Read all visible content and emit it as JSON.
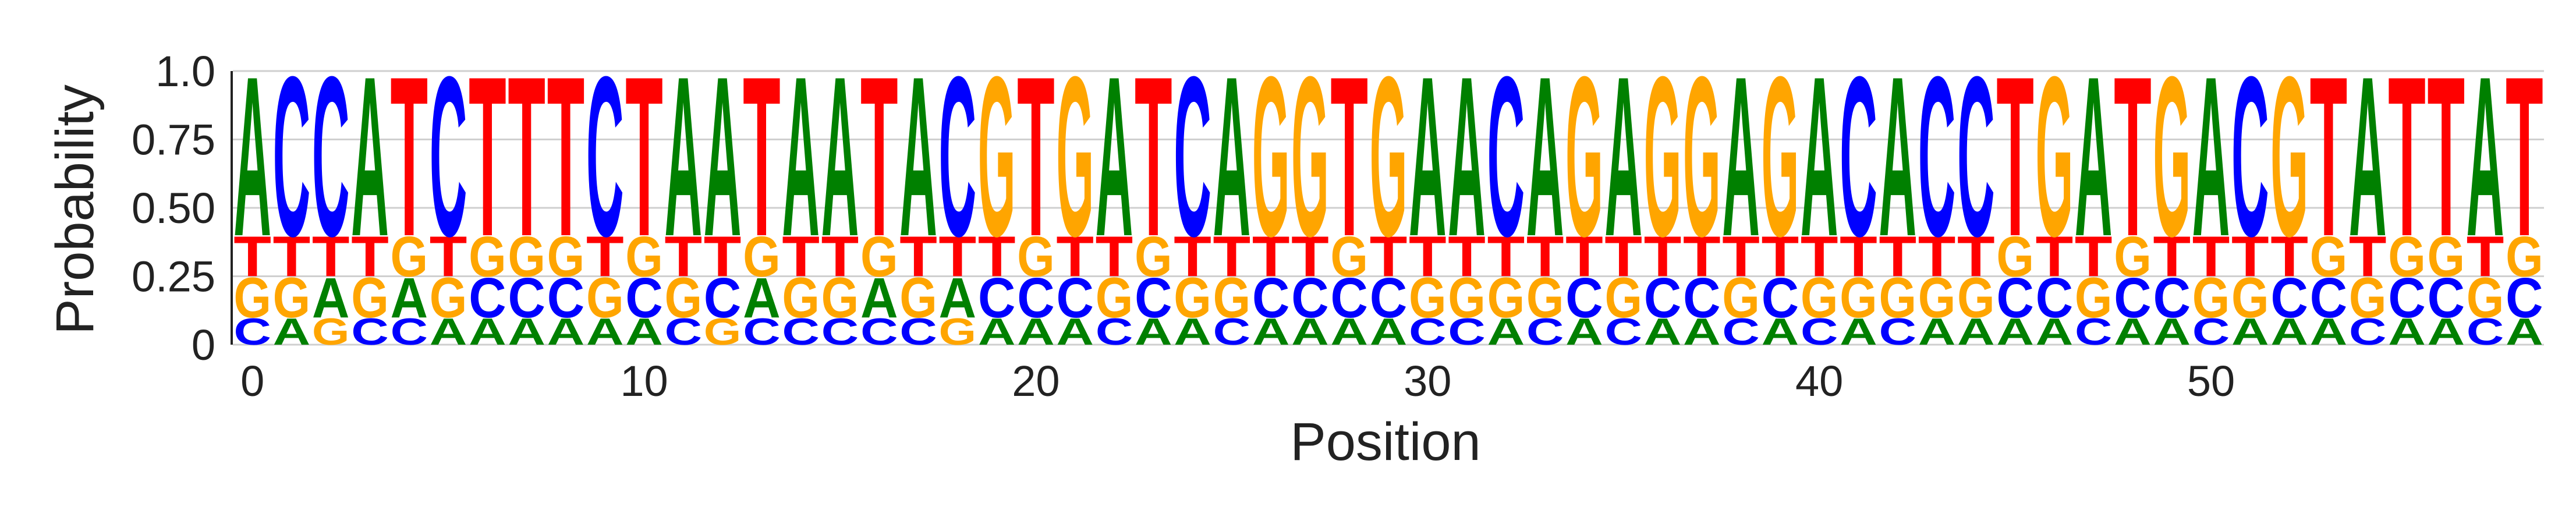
{
  "chart_data": {
    "type": "sequence-logo",
    "title": "",
    "xlabel": "Position",
    "ylabel": "Probability",
    "ylim": [
      0,
      1
    ],
    "yticks": [
      {
        "value": 0,
        "label": "0"
      },
      {
        "value": 0.25,
        "label": "0.25"
      },
      {
        "value": 0.5,
        "label": "0.50"
      },
      {
        "value": 0.75,
        "label": "0.75"
      },
      {
        "value": 1.0,
        "label": "1.0"
      }
    ],
    "xticks": [
      {
        "value": 0,
        "label": "0"
      },
      {
        "value": 10,
        "label": "10"
      },
      {
        "value": 20,
        "label": "20"
      },
      {
        "value": 30,
        "label": "30"
      },
      {
        "value": 40,
        "label": "40"
      },
      {
        "value": 50,
        "label": "50"
      }
    ],
    "grid": true,
    "letters": [
      "A",
      "C",
      "G",
      "T"
    ],
    "letter_colors": {
      "A": "#008000",
      "C": "#0000ff",
      "G": "#ffa500",
      "T": "#ff0000"
    },
    "positions": [
      {
        "pos": 0,
        "A": 0.6,
        "C": 0.1,
        "G": 0.15,
        "T": 0.15
      },
      {
        "pos": 1,
        "A": 0.1,
        "C": 0.6,
        "G": 0.15,
        "T": 0.15
      },
      {
        "pos": 2,
        "A": 0.15,
        "C": 0.6,
        "G": 0.1,
        "T": 0.15
      },
      {
        "pos": 3,
        "A": 0.6,
        "C": 0.1,
        "G": 0.15,
        "T": 0.15
      },
      {
        "pos": 4,
        "A": 0.15,
        "C": 0.1,
        "G": 0.15,
        "T": 0.6
      },
      {
        "pos": 5,
        "A": 0.1,
        "C": 0.6,
        "G": 0.15,
        "T": 0.15
      },
      {
        "pos": 6,
        "A": 0.1,
        "C": 0.15,
        "G": 0.15,
        "T": 0.6
      },
      {
        "pos": 7,
        "A": 0.1,
        "C": 0.15,
        "G": 0.15,
        "T": 0.6
      },
      {
        "pos": 8,
        "A": 0.1,
        "C": 0.15,
        "G": 0.15,
        "T": 0.6
      },
      {
        "pos": 9,
        "A": 0.1,
        "C": 0.6,
        "G": 0.15,
        "T": 0.15
      },
      {
        "pos": 10,
        "A": 0.1,
        "C": 0.15,
        "G": 0.15,
        "T": 0.6
      },
      {
        "pos": 11,
        "A": 0.6,
        "C": 0.1,
        "G": 0.15,
        "T": 0.15
      },
      {
        "pos": 12,
        "A": 0.6,
        "C": 0.15,
        "G": 0.1,
        "T": 0.15
      },
      {
        "pos": 13,
        "A": 0.15,
        "C": 0.1,
        "G": 0.15,
        "T": 0.6
      },
      {
        "pos": 14,
        "A": 0.6,
        "C": 0.1,
        "G": 0.15,
        "T": 0.15
      },
      {
        "pos": 15,
        "A": 0.6,
        "C": 0.1,
        "G": 0.15,
        "T": 0.15
      },
      {
        "pos": 16,
        "A": 0.15,
        "C": 0.1,
        "G": 0.15,
        "T": 0.6
      },
      {
        "pos": 17,
        "A": 0.6,
        "C": 0.1,
        "G": 0.15,
        "T": 0.15
      },
      {
        "pos": 18,
        "A": 0.15,
        "C": 0.6,
        "G": 0.1,
        "T": 0.15
      },
      {
        "pos": 19,
        "A": 0.1,
        "C": 0.15,
        "G": 0.6,
        "T": 0.15
      },
      {
        "pos": 20,
        "A": 0.1,
        "C": 0.15,
        "G": 0.15,
        "T": 0.6
      },
      {
        "pos": 21,
        "A": 0.1,
        "C": 0.15,
        "G": 0.6,
        "T": 0.15
      },
      {
        "pos": 22,
        "A": 0.6,
        "C": 0.1,
        "G": 0.15,
        "T": 0.15
      },
      {
        "pos": 23,
        "A": 0.1,
        "C": 0.15,
        "G": 0.15,
        "T": 0.6
      },
      {
        "pos": 24,
        "A": 0.1,
        "C": 0.6,
        "G": 0.15,
        "T": 0.15
      },
      {
        "pos": 25,
        "A": 0.6,
        "C": 0.1,
        "G": 0.15,
        "T": 0.15
      },
      {
        "pos": 26,
        "A": 0.1,
        "C": 0.15,
        "G": 0.6,
        "T": 0.15
      },
      {
        "pos": 27,
        "A": 0.1,
        "C": 0.15,
        "G": 0.6,
        "T": 0.15
      },
      {
        "pos": 28,
        "A": 0.1,
        "C": 0.15,
        "G": 0.15,
        "T": 0.6
      },
      {
        "pos": 29,
        "A": 0.1,
        "C": 0.15,
        "G": 0.6,
        "T": 0.15
      },
      {
        "pos": 30,
        "A": 0.6,
        "C": 0.1,
        "G": 0.15,
        "T": 0.15
      },
      {
        "pos": 31,
        "A": 0.6,
        "C": 0.1,
        "G": 0.15,
        "T": 0.15
      },
      {
        "pos": 32,
        "A": 0.1,
        "C": 0.6,
        "G": 0.15,
        "T": 0.15
      },
      {
        "pos": 33,
        "A": 0.6,
        "C": 0.1,
        "G": 0.15,
        "T": 0.15
      },
      {
        "pos": 34,
        "A": 0.1,
        "C": 0.15,
        "G": 0.6,
        "T": 0.15
      },
      {
        "pos": 35,
        "A": 0.6,
        "C": 0.1,
        "G": 0.15,
        "T": 0.15
      },
      {
        "pos": 36,
        "A": 0.1,
        "C": 0.15,
        "G": 0.6,
        "T": 0.15
      },
      {
        "pos": 37,
        "A": 0.1,
        "C": 0.15,
        "G": 0.6,
        "T": 0.15
      },
      {
        "pos": 38,
        "A": 0.6,
        "C": 0.1,
        "G": 0.15,
        "T": 0.15
      },
      {
        "pos": 39,
        "A": 0.1,
        "C": 0.15,
        "G": 0.6,
        "T": 0.15
      },
      {
        "pos": 40,
        "A": 0.6,
        "C": 0.1,
        "G": 0.15,
        "T": 0.15
      },
      {
        "pos": 41,
        "A": 0.1,
        "C": 0.6,
        "G": 0.15,
        "T": 0.15
      },
      {
        "pos": 42,
        "A": 0.6,
        "C": 0.1,
        "G": 0.15,
        "T": 0.15
      },
      {
        "pos": 43,
        "A": 0.1,
        "C": 0.6,
        "G": 0.15,
        "T": 0.15
      },
      {
        "pos": 44,
        "A": 0.1,
        "C": 0.6,
        "G": 0.15,
        "T": 0.15
      },
      {
        "pos": 45,
        "A": 0.1,
        "C": 0.15,
        "G": 0.15,
        "T": 0.6
      },
      {
        "pos": 46,
        "A": 0.1,
        "C": 0.15,
        "G": 0.6,
        "T": 0.15
      },
      {
        "pos": 47,
        "A": 0.6,
        "C": 0.1,
        "G": 0.15,
        "T": 0.15
      },
      {
        "pos": 48,
        "A": 0.1,
        "C": 0.15,
        "G": 0.15,
        "T": 0.6
      },
      {
        "pos": 49,
        "A": 0.1,
        "C": 0.15,
        "G": 0.6,
        "T": 0.15
      },
      {
        "pos": 50,
        "A": 0.6,
        "C": 0.1,
        "G": 0.15,
        "T": 0.15
      },
      {
        "pos": 51,
        "A": 0.1,
        "C": 0.6,
        "G": 0.15,
        "T": 0.15
      },
      {
        "pos": 52,
        "A": 0.1,
        "C": 0.15,
        "G": 0.6,
        "T": 0.15
      },
      {
        "pos": 53,
        "A": 0.1,
        "C": 0.15,
        "G": 0.15,
        "T": 0.6
      },
      {
        "pos": 54,
        "A": 0.6,
        "C": 0.1,
        "G": 0.15,
        "T": 0.15
      },
      {
        "pos": 55,
        "A": 0.1,
        "C": 0.15,
        "G": 0.15,
        "T": 0.6
      },
      {
        "pos": 56,
        "A": 0.1,
        "C": 0.15,
        "G": 0.15,
        "T": 0.6
      },
      {
        "pos": 57,
        "A": 0.6,
        "C": 0.1,
        "G": 0.15,
        "T": 0.15
      },
      {
        "pos": 58,
        "A": 0.1,
        "C": 0.15,
        "G": 0.15,
        "T": 0.6
      }
    ]
  }
}
